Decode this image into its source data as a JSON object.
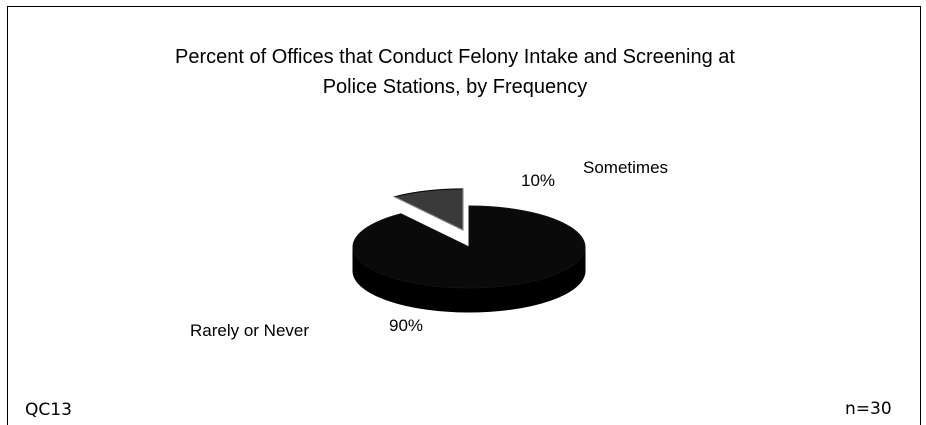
{
  "chart_data": {
    "type": "pie",
    "title_lines": [
      "Percent of Offices that Conduct Felony Intake and Screening at",
      "Police Stations, by Frequency"
    ],
    "slices": [
      {
        "label": "Rarely or Never",
        "value": 90,
        "value_label": "90%",
        "color": "#0a0a0a"
      },
      {
        "label": "Sometimes",
        "value": 10,
        "value_label": "10%",
        "color": "#3a3a3a"
      }
    ],
    "exploded": "Sometimes",
    "style": "3d"
  },
  "footer": {
    "left": "QC13",
    "right": "n=30"
  }
}
